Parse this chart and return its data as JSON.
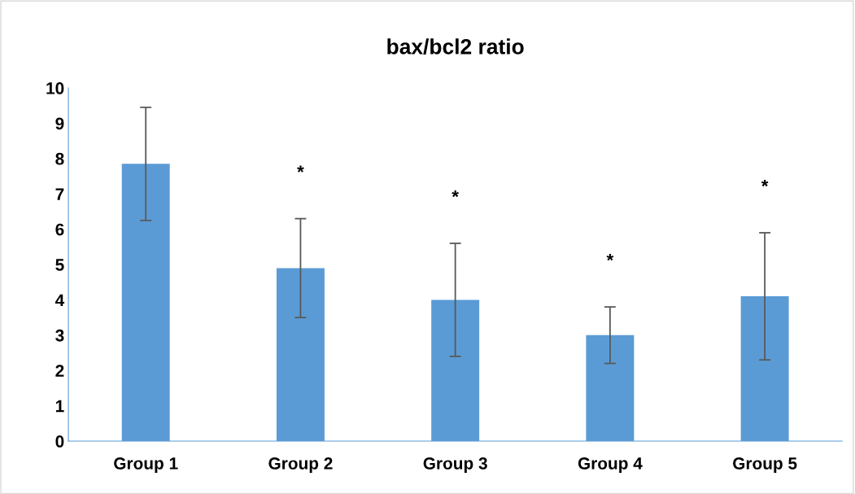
{
  "chart_data": {
    "type": "bar",
    "title": "bax/bcl2 ratio",
    "categories": [
      "Group 1",
      "Group 2",
      "Group 3",
      "Group 4",
      "Group 5"
    ],
    "values": [
      7.85,
      4.9,
      4.0,
      3.0,
      4.1
    ],
    "errors": [
      1.6,
      1.4,
      1.6,
      0.8,
      1.8
    ],
    "color": "#5b9bd5",
    "ylim": [
      0,
      10
    ],
    "yticks": [
      0,
      1,
      2,
      3,
      4,
      5,
      6,
      7,
      8,
      9,
      10
    ],
    "grid": false,
    "legend": false,
    "annotations": [
      "*",
      "*",
      "*",
      "*"
    ]
  }
}
